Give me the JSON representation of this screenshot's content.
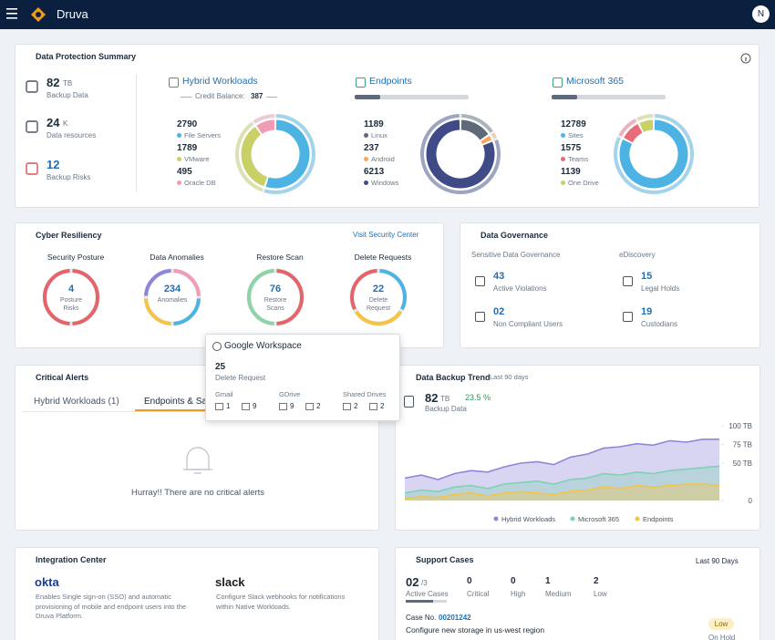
{
  "header": {
    "brand": "Druva",
    "avatar": "N"
  },
  "protection": {
    "title": "Data Protection Summary",
    "stats": [
      {
        "value": "82",
        "unit": "TB",
        "label": "Backup Data"
      },
      {
        "value": "24",
        "unit": "K",
        "label": "Data resources"
      },
      {
        "value": "12",
        "label": "Backup Risks"
      }
    ],
    "groups": [
      {
        "title": "Hybrid Workloads",
        "credit_label": "Credit Balance:",
        "credit_value": "387",
        "items": [
          {
            "value": 2790,
            "label": "File Servers",
            "color": "#4db3e3"
          },
          {
            "value": 1789,
            "label": "VMware",
            "color": "#c8d066"
          },
          {
            "value": 495,
            "label": "Oracle DB",
            "color": "#f29bb5"
          }
        ]
      },
      {
        "title": "Endpoints",
        "items": [
          {
            "value": 1189,
            "label": "Linux",
            "color": "#5e6a7a"
          },
          {
            "value": 237,
            "label": "Android",
            "color": "#f7a75c"
          },
          {
            "value": 6213,
            "label": "Windows",
            "color": "#3f4b86"
          }
        ]
      },
      {
        "title": "Microsoft 365",
        "items": [
          {
            "value": 12789,
            "label": "Sites",
            "color": "#4db3e3"
          },
          {
            "value": 1575,
            "label": "Teams",
            "color": "#ea6b78"
          },
          {
            "value": 1139,
            "label": "One Drive",
            "color": "#c8d066"
          }
        ]
      }
    ]
  },
  "cyber": {
    "title": "Cyber Resiliency",
    "link": "Visit Security Center",
    "gauges": [
      {
        "title": "Security Posture",
        "value": "4",
        "label": "Posture Risks"
      },
      {
        "title": "Data Anomalies",
        "value": "234",
        "label": "Anomalies"
      },
      {
        "title": "Restore Scan",
        "value": "76",
        "label": "Restore Scans"
      },
      {
        "title": "Delete Requests",
        "value": "22",
        "label": "Delete Request"
      }
    ]
  },
  "tooltip": {
    "title": "Google Workspace",
    "value": "25",
    "label": "Delete Request",
    "apps": [
      {
        "name": "Gmail",
        "counts": [
          "1",
          "9"
        ]
      },
      {
        "name": "GDrive",
        "counts": [
          "9",
          "2"
        ]
      },
      {
        "name": "Shared Drives",
        "counts": [
          "2",
          "2"
        ]
      }
    ]
  },
  "governance": {
    "title": "Data Governance",
    "sections": [
      {
        "title": "Sensitive Data Governance",
        "items": [
          {
            "value": "43",
            "label": "Active Violations"
          },
          {
            "value": "02",
            "label": "Non Compliant Users"
          }
        ]
      },
      {
        "title": "eDiscovery",
        "items": [
          {
            "value": "15",
            "label": "Legal Holds"
          },
          {
            "value": "19",
            "label": "Custodians"
          }
        ]
      }
    ]
  },
  "alerts": {
    "title": "Critical Alerts",
    "tabs": [
      "Hybrid Workloads (1)",
      "Endpoints & SaaS Apps"
    ],
    "message": "Hurray!! There are no critical alerts"
  },
  "trend": {
    "value": "82",
    "unit": "TB",
    "change": "23.5 %",
    "label": "Backup Data"
  },
  "chart_data": {
    "type": "area",
    "title": "Data Backup Trend",
    "subtitle": "Last 90 days",
    "categories": [
      null,
      null,
      null,
      null,
      null,
      null,
      null,
      null,
      null,
      null,
      null,
      null,
      null,
      null,
      null,
      null,
      null,
      null,
      null,
      null
    ],
    "ylim": [
      0,
      100
    ],
    "yticks": [
      {
        "value": 100,
        "label": "100 TB"
      },
      {
        "value": 75,
        "label": "75 TB"
      },
      {
        "value": 50,
        "label": "50 TB"
      },
      0
    ],
    "legend": "bottom",
    "series": [
      {
        "name": "Hybrid Workloads",
        "color": "#8f86d9",
        "values": [
          30,
          34,
          28,
          36,
          40,
          38,
          45,
          50,
          52,
          48,
          58,
          62,
          70,
          72,
          76,
          74,
          80,
          78,
          82,
          82
        ]
      },
      {
        "name": "Microsoft 365",
        "color": "#7fd1b3",
        "values": [
          10,
          14,
          12,
          18,
          20,
          16,
          22,
          24,
          26,
          22,
          28,
          30,
          36,
          34,
          38,
          36,
          40,
          42,
          44,
          46
        ]
      },
      {
        "name": "Endpoints",
        "color": "#f5c445",
        "values": [
          3,
          5,
          4,
          8,
          10,
          6,
          10,
          12,
          10,
          8,
          12,
          14,
          18,
          16,
          20,
          18,
          20,
          22,
          22,
          20
        ]
      }
    ]
  },
  "integration": {
    "title": "Integration Center",
    "apps": [
      {
        "name": "okta",
        "description": "Enables Single sign-on (SSO) and automatic provisioning of mobile and endpoint users into the Druva Platform."
      },
      {
        "name": "slack",
        "description": "Configure Slack webhooks for notifications within Native Workloads."
      }
    ]
  },
  "support": {
    "title": "Support Cases",
    "period": "Last 90 Days",
    "active": {
      "value": "02",
      "total": "/3",
      "label": "Active Cases"
    },
    "levels": [
      {
        "value": "0",
        "label": "Critical"
      },
      {
        "value": "0",
        "label": "High"
      },
      {
        "value": "1",
        "label": "Medium"
      },
      {
        "value": "2",
        "label": "Low"
      }
    ],
    "case": {
      "label": "Case No.",
      "number": "00201242",
      "title": "Configure new storage in us-west region",
      "priority": "Low",
      "status": "On Hold"
    }
  }
}
